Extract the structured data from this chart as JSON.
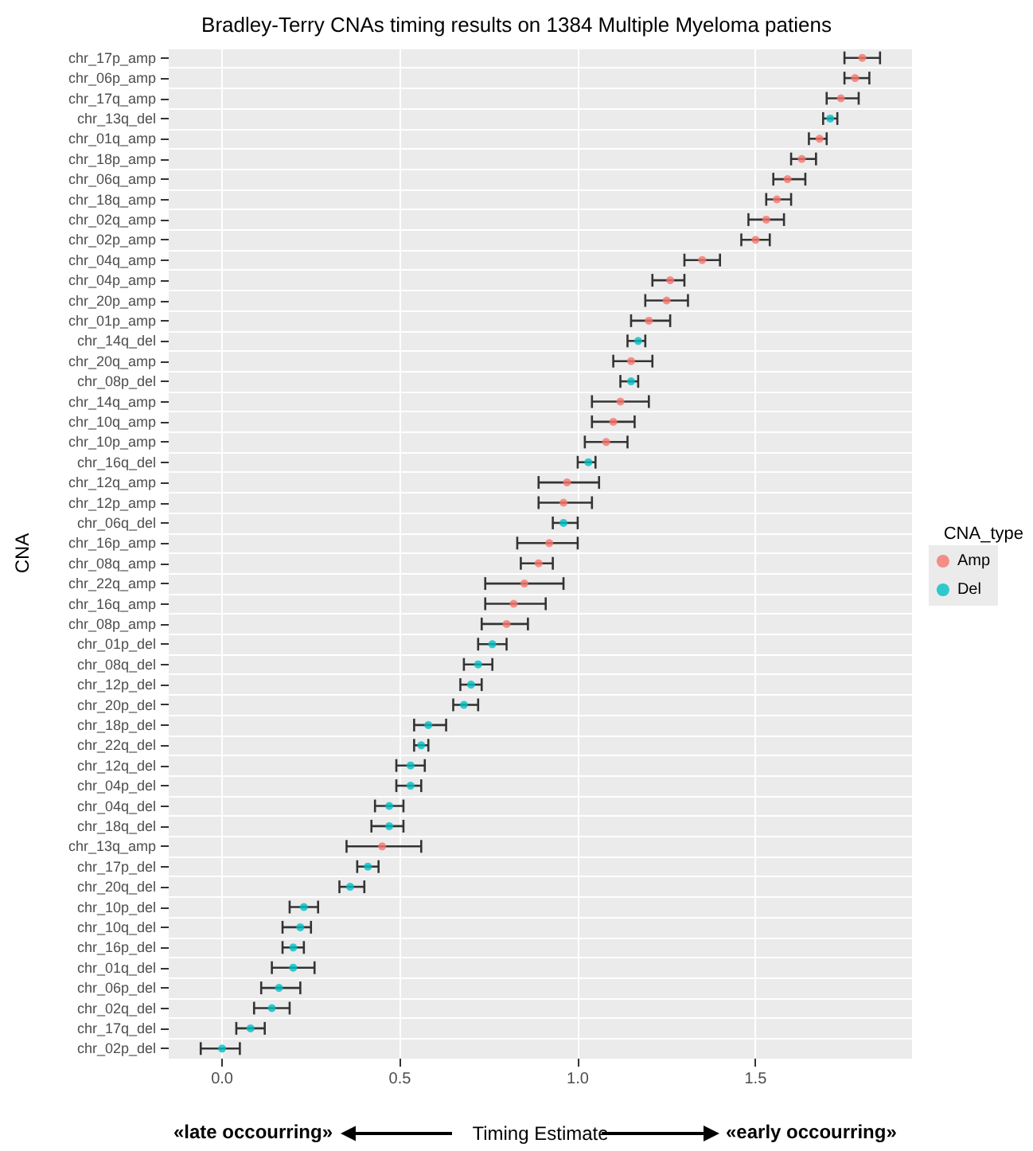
{
  "chart_data": {
    "type": "scatter",
    "orientation": "horizontal",
    "title": "Bradley-Terry CNAs timing results on 1384 Multiple Myeloma patiens",
    "xlabel": "Timing Estimate",
    "ylabel": "CNA",
    "legend_title": "CNA_type",
    "legend": "right",
    "grid": true,
    "marker": "circle",
    "annotations": [
      "«late occourring»",
      "«early occourring»"
    ],
    "xlim": [
      -0.15,
      1.94
    ],
    "xticks": [
      {
        "value": 0,
        "label": "0.0"
      },
      {
        "value": 0.5,
        "label": "0.5"
      },
      {
        "value": 1,
        "label": "1.0"
      },
      {
        "value": 1.5,
        "label": "1.5"
      }
    ],
    "categories": [
      "chr_17p_amp",
      "chr_06p_amp",
      "chr_17q_amp",
      "chr_13q_del",
      "chr_01q_amp",
      "chr_18p_amp",
      "chr_06q_amp",
      "chr_18q_amp",
      "chr_02q_amp",
      "chr_02p_amp",
      "chr_04q_amp",
      "chr_04p_amp",
      "chr_20p_amp",
      "chr_01p_amp",
      "chr_14q_del",
      "chr_20q_amp",
      "chr_08p_del",
      "chr_14q_amp",
      "chr_10q_amp",
      "chr_10p_amp",
      "chr_16q_del",
      "chr_12q_amp",
      "chr_12p_amp",
      "chr_06q_del",
      "chr_16p_amp",
      "chr_08q_amp",
      "chr_22q_amp",
      "chr_16q_amp",
      "chr_08p_amp",
      "chr_01p_del",
      "chr_08q_del",
      "chr_12p_del",
      "chr_20p_del",
      "chr_18p_del",
      "chr_22q_del",
      "chr_12q_del",
      "chr_04p_del",
      "chr_04q_del",
      "chr_18q_del",
      "chr_13q_amp",
      "chr_17p_del",
      "chr_20q_del",
      "chr_10p_del",
      "chr_10q_del",
      "chr_16p_del",
      "chr_01q_del",
      "chr_06p_del",
      "chr_02q_del",
      "chr_17q_del",
      "chr_02p_del"
    ],
    "series": [
      {
        "name": "Amp",
        "color": "#f8766d",
        "values": [
          1.8,
          1.78,
          1.74,
          null,
          1.68,
          1.63,
          1.59,
          1.56,
          1.53,
          1.5,
          1.35,
          1.26,
          1.25,
          1.2,
          null,
          1.15,
          null,
          1.12,
          1.1,
          1.08,
          null,
          0.97,
          0.96,
          null,
          0.92,
          0.89,
          0.85,
          0.82,
          0.8,
          null,
          null,
          null,
          null,
          null,
          null,
          null,
          null,
          null,
          null,
          0.45,
          null,
          null,
          null,
          null,
          null,
          null,
          null,
          null,
          null,
          null
        ],
        "errors": [
          [
            1.75,
            1.85
          ],
          [
            1.75,
            1.82
          ],
          [
            1.7,
            1.79
          ],
          null,
          [
            1.65,
            1.7
          ],
          [
            1.6,
            1.67
          ],
          [
            1.55,
            1.64
          ],
          [
            1.53,
            1.6
          ],
          [
            1.48,
            1.58
          ],
          [
            1.46,
            1.54
          ],
          [
            1.3,
            1.4
          ],
          [
            1.21,
            1.3
          ],
          [
            1.19,
            1.31
          ],
          [
            1.15,
            1.26
          ],
          null,
          [
            1.1,
            1.21
          ],
          null,
          [
            1.04,
            1.2
          ],
          [
            1.04,
            1.16
          ],
          [
            1.02,
            1.14
          ],
          null,
          [
            0.89,
            1.06
          ],
          [
            0.89,
            1.04
          ],
          null,
          [
            0.83,
            1.0
          ],
          [
            0.84,
            0.93
          ],
          [
            0.74,
            0.96
          ],
          [
            0.74,
            0.91
          ],
          [
            0.73,
            0.86
          ],
          null,
          null,
          null,
          null,
          null,
          null,
          null,
          null,
          null,
          null,
          [
            0.35,
            0.56
          ],
          null,
          null,
          null,
          null,
          null,
          null,
          null,
          null,
          null,
          null
        ]
      },
      {
        "name": "Del",
        "color": "#00bfc4",
        "values": [
          null,
          null,
          null,
          1.71,
          null,
          null,
          null,
          null,
          null,
          null,
          null,
          null,
          null,
          null,
          1.17,
          null,
          1.15,
          null,
          null,
          null,
          1.03,
          null,
          null,
          0.96,
          null,
          null,
          null,
          null,
          null,
          0.76,
          0.72,
          0.7,
          0.68,
          0.58,
          0.56,
          0.53,
          0.53,
          0.47,
          0.47,
          null,
          0.41,
          0.36,
          0.23,
          0.22,
          0.2,
          0.2,
          0.16,
          0.14,
          0.08,
          0.0
        ],
        "errors": [
          null,
          null,
          null,
          [
            1.69,
            1.73
          ],
          null,
          null,
          null,
          null,
          null,
          null,
          null,
          null,
          null,
          null,
          [
            1.14,
            1.19
          ],
          null,
          [
            1.12,
            1.17
          ],
          null,
          null,
          null,
          [
            1.0,
            1.05
          ],
          null,
          null,
          [
            0.93,
            1.0
          ],
          null,
          null,
          null,
          null,
          null,
          [
            0.72,
            0.8
          ],
          [
            0.68,
            0.76
          ],
          [
            0.67,
            0.73
          ],
          [
            0.65,
            0.72
          ],
          [
            0.54,
            0.63
          ],
          [
            0.54,
            0.58
          ],
          [
            0.49,
            0.57
          ],
          [
            0.49,
            0.56
          ],
          [
            0.43,
            0.51
          ],
          [
            0.42,
            0.51
          ],
          null,
          [
            0.38,
            0.44
          ],
          [
            0.33,
            0.4
          ],
          [
            0.19,
            0.27
          ],
          [
            0.17,
            0.25
          ],
          [
            0.17,
            0.23
          ],
          [
            0.14,
            0.26
          ],
          [
            0.11,
            0.22
          ],
          [
            0.09,
            0.19
          ],
          [
            0.04,
            0.12
          ],
          [
            -0.06,
            0.05
          ]
        ]
      }
    ]
  }
}
